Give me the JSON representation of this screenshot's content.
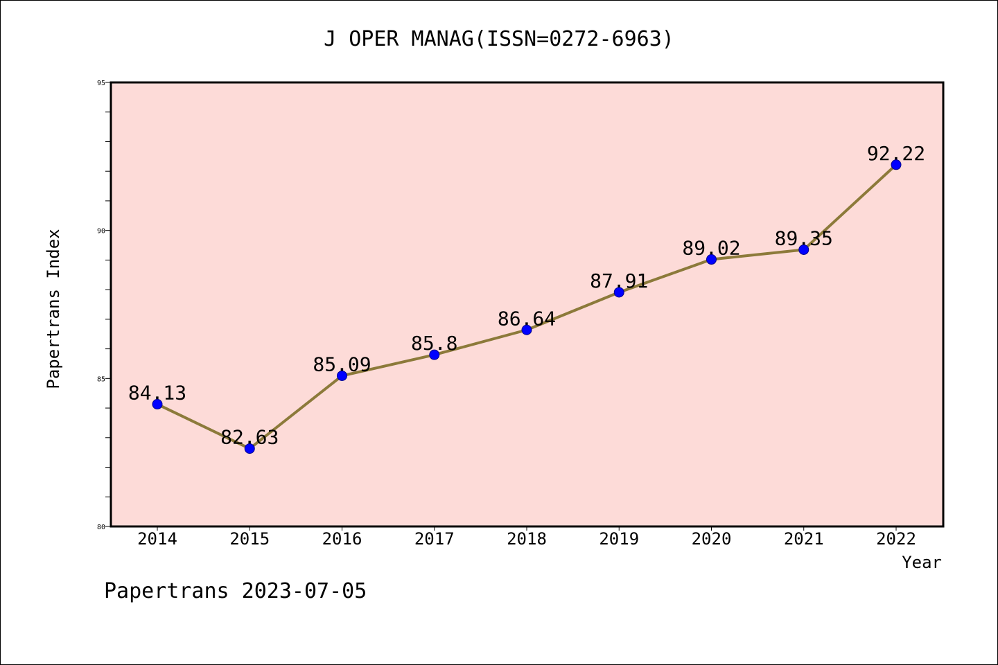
{
  "chart_data": {
    "type": "line",
    "title": "J OPER MANAG(ISSN=0272-6963)",
    "xlabel": "Year",
    "ylabel": "Papertrans Index",
    "categories": [
      "2014",
      "2015",
      "2016",
      "2017",
      "2018",
      "2019",
      "2020",
      "2021",
      "2022"
    ],
    "series": [
      {
        "values": [
          84.13,
          82.63,
          85.09,
          85.8,
          86.64,
          87.91,
          89.02,
          89.35,
          92.22
        ]
      }
    ],
    "data_labels": [
      "84.13",
      "82.63",
      "85.09",
      "85.8",
      "86.64",
      "87.91",
      "89.02",
      "89.35",
      "92.22"
    ],
    "ylim": [
      80,
      95
    ],
    "y_ticks": [
      "80",
      "85",
      "90",
      "95"
    ],
    "grid": false,
    "legend": "none",
    "colors": {
      "plot_background": "#fddbd8",
      "line": "#8c7a3a",
      "marker": "#0000ff"
    },
    "footer": "Papertrans 2023-07-05"
  }
}
